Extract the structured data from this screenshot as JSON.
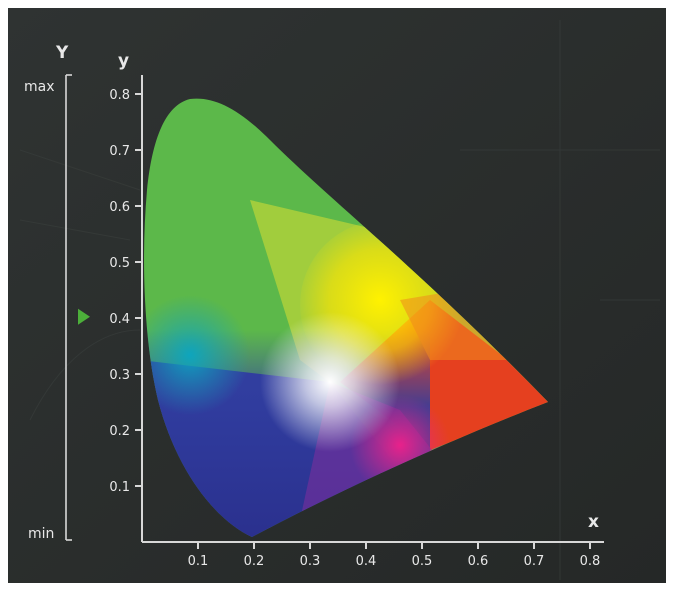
{
  "diagram": {
    "x_axis": {
      "label": "x",
      "ticks": [
        "0.1",
        "0.2",
        "0.3",
        "0.4",
        "0.5",
        "0.6",
        "0.7",
        "0.8"
      ]
    },
    "y_axis": {
      "label": "y",
      "ticks": [
        "0.1",
        "0.2",
        "0.3",
        "0.4",
        "0.5",
        "0.6",
        "0.7",
        "0.8"
      ]
    },
    "luminance_scale": {
      "label": "Y",
      "max_label": "max",
      "min_label": "min",
      "marker_level": 0.48,
      "marker_color": "#4caf3a"
    },
    "colors": {
      "background": "#2a2d2c",
      "axis": "#d8d8d8",
      "green": "#59b54a",
      "yellow": "#ffe600",
      "red": "#e8411f",
      "magenta": "#e02a8a",
      "blue": "#2b3596",
      "cyan": "#1aa0b8",
      "white_point": "#ffffff"
    }
  }
}
